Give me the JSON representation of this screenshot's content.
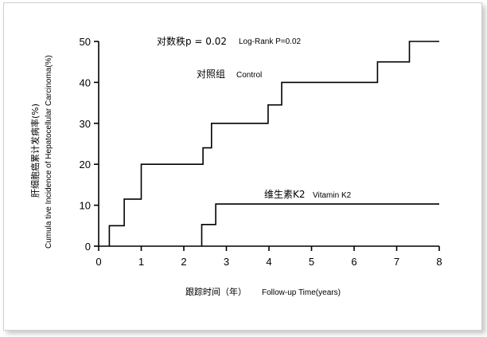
{
  "chart_data": {
    "type": "line",
    "step": true,
    "x_range": [
      0,
      8
    ],
    "y_range": [
      0,
      50
    ],
    "x_ticks": [
      0,
      1,
      2,
      3,
      4,
      5,
      6,
      7,
      8
    ],
    "y_ticks": [
      0,
      10,
      20,
      30,
      40,
      50
    ],
    "xlabel_cn": "跟踪时间（年）",
    "xlabel_en": "Follow-up Time(years)",
    "ylabel_cn": "肝细胞癌累计发病率(%)",
    "ylabel_en": "Cumula tive Incidence of Hepatocellular Carcinoma(%)",
    "grid": false,
    "annotations": {
      "p_cn": "对数秩p = 0.02",
      "p_en": "Log-Rank P=0.02"
    },
    "series": [
      {
        "name_cn": "对照组",
        "name_en": "Control",
        "points": [
          [
            0.25,
            0
          ],
          [
            0.25,
            5
          ],
          [
            0.6,
            5
          ],
          [
            0.6,
            11.5
          ],
          [
            1.0,
            11.5
          ],
          [
            1.0,
            20
          ],
          [
            2.45,
            20
          ],
          [
            2.45,
            24
          ],
          [
            2.65,
            24
          ],
          [
            2.65,
            30
          ],
          [
            3.98,
            30
          ],
          [
            3.98,
            34.5
          ],
          [
            4.3,
            34.5
          ],
          [
            4.3,
            40
          ],
          [
            6.55,
            40
          ],
          [
            6.55,
            45
          ],
          [
            7.3,
            45
          ],
          [
            7.3,
            50
          ],
          [
            8.0,
            50
          ]
        ]
      },
      {
        "name_cn": "维生素K2",
        "name_en": "Vitamin K2",
        "points": [
          [
            2.42,
            0
          ],
          [
            2.42,
            5.3
          ],
          [
            2.75,
            5.3
          ],
          [
            2.75,
            10.3
          ],
          [
            8.0,
            10.3
          ]
        ]
      }
    ]
  }
}
